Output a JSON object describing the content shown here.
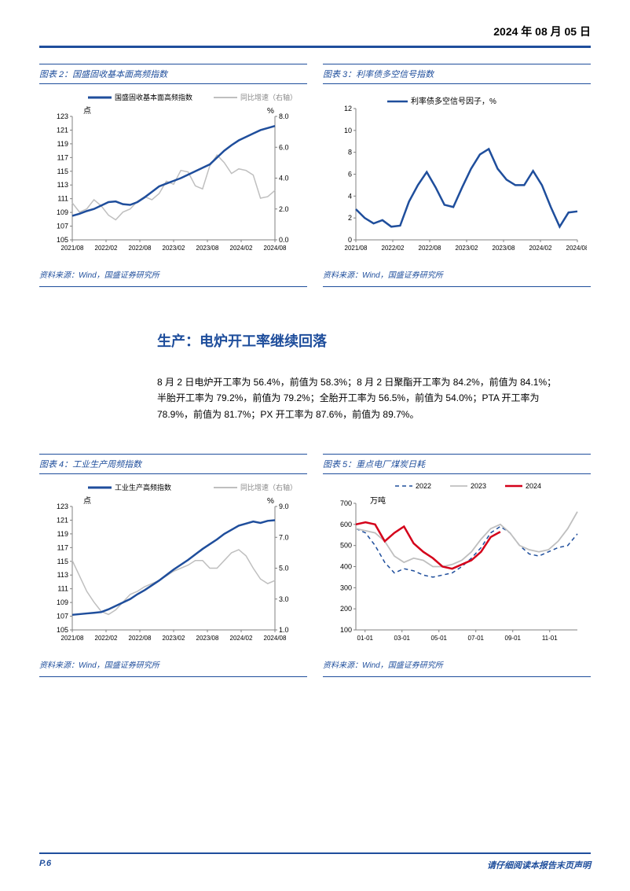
{
  "header": {
    "date": "2024 年 08 月 05 日"
  },
  "chart2": {
    "title": "图表 2：国盛固收基本面高频指数",
    "source": "资料来源：Wind，国盛证券研究所",
    "legend": {
      "a": "国盛固收基本面高频指数",
      "b": "同比增速（右轴）"
    },
    "y_left_label": "点",
    "y_right_label": "%",
    "y_left": {
      "min": 105,
      "max": 123,
      "step": 2
    },
    "y_right": {
      "min": 0.0,
      "max": 8.0,
      "step": 2.0
    },
    "x_ticks": [
      "2021/08",
      "2022/02",
      "2022/08",
      "2023/02",
      "2023/08",
      "2024/02",
      "2024/08"
    ],
    "series_index": {
      "color": "#1f4e9c",
      "width": 2.5,
      "y": [
        108.5,
        108.8,
        109.2,
        109.5,
        110.0,
        110.5,
        110.6,
        110.2,
        110.1,
        110.5,
        111.2,
        112.0,
        112.8,
        113.2,
        113.6,
        114.0,
        114.5,
        115.0,
        115.5,
        116.0,
        117.0,
        118.0,
        118.8,
        119.5,
        120.0,
        120.5,
        121.0,
        121.3,
        121.6
      ]
    },
    "series_yoy": {
      "color": "#bfbfbf",
      "width": 1.5,
      "y": [
        2.4,
        1.8,
        2.0,
        2.6,
        2.2,
        1.6,
        1.3,
        1.8,
        2.0,
        2.5,
        2.8,
        2.6,
        3.0,
        3.8,
        3.6,
        4.5,
        4.4,
        3.5,
        3.3,
        4.8,
        5.5,
        5.0,
        4.3,
        4.6,
        4.5,
        4.2,
        2.7,
        2.8,
        3.2
      ]
    }
  },
  "chart3": {
    "title": "图表 3：利率债多空信号指数",
    "source": "资料来源：Wind，国盛证券研究所",
    "series_label": "利率债多空信号因子，%",
    "y": {
      "min": 0,
      "max": 12,
      "step": 2
    },
    "x_ticks": [
      "2021/08",
      "2022/02",
      "2022/08",
      "2023/02",
      "2023/08",
      "2024/02",
      "2024/08"
    ],
    "series": {
      "color": "#1f4e9c",
      "width": 2.5,
      "y": [
        2.8,
        2.0,
        1.5,
        1.8,
        1.2,
        1.3,
        3.5,
        5.0,
        6.2,
        4.8,
        3.2,
        3.0,
        4.8,
        6.5,
        7.8,
        8.3,
        6.5,
        5.5,
        5.0,
        5.0,
        6.3,
        5.0,
        3.0,
        1.2,
        2.5,
        2.6
      ]
    }
  },
  "section": {
    "title": "生产：电炉开工率继续回落",
    "body": "8 月 2 日电炉开工率为 56.4%，前值为 58.3%；8 月 2 日聚酯开工率为 84.2%，前值为 84.1%；半胎开工率为 79.2%，前值为 79.2%；全胎开工率为 56.5%，前值为 54.0%；PTA 开工率为 78.9%，前值为 81.7%；PX 开工率为 87.6%，前值为 89.7%。"
  },
  "chart4": {
    "title": "图表 4：工业生产周频指数",
    "source": "资料来源：Wind，国盛证券研究所",
    "legend": {
      "a": "工业生产高频指数",
      "b": "同比增速（右轴）"
    },
    "y_left_label": "点",
    "y_right_label": "%",
    "y_left": {
      "min": 105,
      "max": 123,
      "step": 2
    },
    "y_right": {
      "min": 1,
      "max": 9,
      "step": 2
    },
    "x_ticks": [
      "2021/08",
      "2022/02",
      "2022/08",
      "2023/02",
      "2023/08",
      "2024/02",
      "2024/08"
    ],
    "series_index": {
      "color": "#1f4e9c",
      "width": 2.5,
      "y": [
        107.2,
        107.3,
        107.4,
        107.5,
        107.6,
        108.0,
        108.5,
        109.0,
        109.5,
        110.2,
        110.8,
        111.5,
        112.2,
        113.0,
        113.8,
        114.5,
        115.2,
        116.0,
        116.8,
        117.5,
        118.2,
        119.0,
        119.6,
        120.2,
        120.5,
        120.8,
        120.6,
        120.9,
        121.0
      ]
    },
    "series_yoy": {
      "color": "#bfbfbf",
      "width": 1.5,
      "y": [
        5.5,
        4.5,
        3.5,
        2.8,
        2.2,
        2.0,
        2.3,
        2.8,
        3.3,
        3.5,
        3.8,
        4.0,
        4.2,
        4.5,
        4.8,
        5.0,
        5.2,
        5.5,
        5.5,
        5.0,
        5.0,
        5.5,
        6.0,
        6.2,
        5.8,
        5.0,
        4.3,
        4.0,
        4.2
      ]
    }
  },
  "chart5": {
    "title": "图表 5：重点电厂煤炭日耗",
    "source": "资料来源：Wind，国盛证券研究所",
    "y_label": "万吨",
    "y": {
      "min": 100,
      "max": 700,
      "step": 100
    },
    "x_ticks": [
      "01-01",
      "03-01",
      "05-01",
      "07-01",
      "09-01",
      "11-01"
    ],
    "legend": [
      {
        "label": "2022",
        "color": "#1f4e9c",
        "dash": true,
        "width": 1.5
      },
      {
        "label": "2023",
        "color": "#bfbfbf",
        "dash": false,
        "width": 1.8
      },
      {
        "label": "2024",
        "color": "#d4001a",
        "dash": false,
        "width": 2.5
      }
    ],
    "series_2022": [
      580,
      560,
      500,
      420,
      370,
      390,
      380,
      360,
      350,
      360,
      370,
      400,
      440,
      490,
      560,
      590,
      560,
      500,
      460,
      450,
      470,
      490,
      500,
      555
    ],
    "series_2023": [
      580,
      570,
      560,
      520,
      450,
      420,
      440,
      430,
      400,
      400,
      410,
      430,
      470,
      530,
      580,
      600,
      560,
      500,
      480,
      470,
      480,
      520,
      580,
      660
    ],
    "series_2024": [
      600,
      610,
      600,
      520,
      560,
      590,
      510,
      470,
      440,
      400,
      390,
      410,
      430,
      470,
      540,
      565
    ]
  },
  "colors": {
    "accent": "#1f4e9c",
    "grey": "#bfbfbf",
    "red": "#d4001a",
    "grid": "#d9d9d9",
    "axis": "#808080"
  },
  "footer": {
    "page": "P.6",
    "note": "请仔细阅读本报告末页声明"
  }
}
